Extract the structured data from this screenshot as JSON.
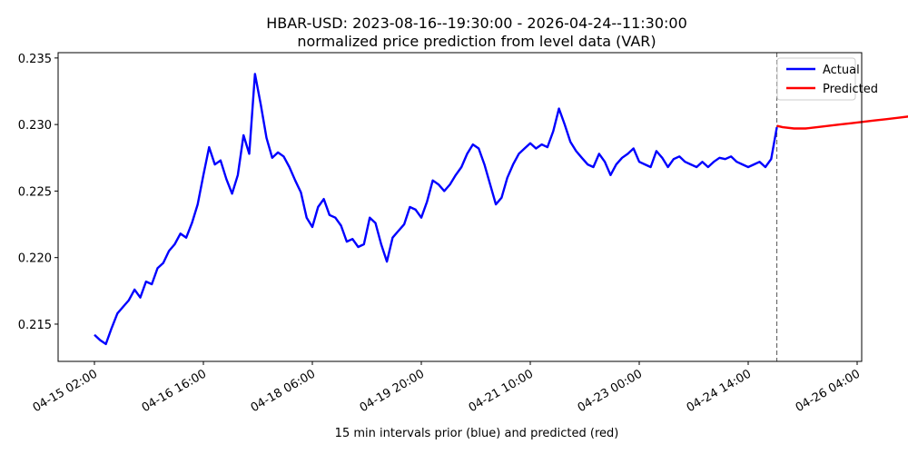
{
  "chart_data": {
    "type": "line",
    "title": "HBAR-USD: 2023-08-16--19:30:00 - 2026-04-24--11:30:00",
    "subtitle": "normalized price prediction from level data (VAR)",
    "xlabel": "15 min intervals prior (blue) and predicted (red)",
    "ylabel": "",
    "x_ticks": [
      "04-15 02:00",
      "04-16 16:00",
      "04-18 06:00",
      "04-19 20:00",
      "04-21 10:00",
      "04-23 00:00",
      "04-24 14:00",
      "04-26 04:00"
    ],
    "y_ticks": [
      "0.215",
      "0.220",
      "0.225",
      "0.230",
      "0.235"
    ],
    "ylim": [
      0.2122,
      0.2354
    ],
    "forecast_start_label": "04-24 13:15",
    "legend": {
      "position": "top-right"
    },
    "series": [
      {
        "name": "Actual",
        "color": "#0000ff",
        "x_hours": [
          0,
          2,
          4,
          6,
          8,
          10,
          12,
          14,
          16,
          18,
          20,
          22,
          24,
          26,
          28,
          30,
          32,
          34,
          36,
          38,
          40,
          42,
          44,
          46,
          48,
          50,
          52,
          54,
          56,
          58,
          60,
          62,
          64,
          66,
          68,
          70,
          72,
          74,
          76,
          78,
          80,
          82,
          84,
          86,
          88,
          90,
          92,
          94,
          96,
          98,
          100,
          102,
          104,
          106,
          108,
          110,
          112,
          114,
          116,
          118,
          120,
          122,
          124,
          126,
          128,
          130,
          132,
          134,
          136,
          138,
          140,
          142,
          144,
          146,
          148,
          150,
          152,
          154,
          156,
          158,
          160,
          162,
          164,
          166,
          168,
          170,
          172,
          174,
          176,
          178,
          180,
          182,
          184,
          186,
          188,
          190,
          192,
          194,
          196,
          198,
          200,
          202,
          204,
          206,
          208,
          210,
          212,
          214,
          216,
          218,
          220,
          222,
          224,
          226,
          228,
          230,
          232,
          234,
          236,
          238
        ],
        "values": [
          0.2142,
          0.2138,
          0.2135,
          0.2147,
          0.2158,
          0.2163,
          0.2168,
          0.2176,
          0.217,
          0.2182,
          0.218,
          0.2192,
          0.2196,
          0.2205,
          0.221,
          0.2218,
          0.2215,
          0.2226,
          0.224,
          0.2262,
          0.2283,
          0.227,
          0.2273,
          0.2259,
          0.2248,
          0.2262,
          0.2292,
          0.2278,
          0.2338,
          0.2315,
          0.229,
          0.2275,
          0.2279,
          0.2276,
          0.2268,
          0.2258,
          0.2249,
          0.223,
          0.2223,
          0.2238,
          0.2244,
          0.2232,
          0.223,
          0.2224,
          0.2212,
          0.2214,
          0.2208,
          0.221,
          0.223,
          0.2226,
          0.221,
          0.2197,
          0.2215,
          0.222,
          0.2225,
          0.2238,
          0.2236,
          0.223,
          0.2242,
          0.2258,
          0.2255,
          0.225,
          0.2255,
          0.2262,
          0.2268,
          0.2278,
          0.2285,
          0.2282,
          0.227,
          0.2255,
          0.224,
          0.2245,
          0.226,
          0.227,
          0.2278,
          0.2282,
          0.2286,
          0.2282,
          0.2285,
          0.2283,
          0.2295,
          0.2312,
          0.23,
          0.2287,
          0.228,
          0.2275,
          0.227,
          0.2268,
          0.2278,
          0.2272,
          0.2262,
          0.227,
          0.2275,
          0.2278,
          0.2282,
          0.2272,
          0.227,
          0.2268,
          0.228,
          0.2275,
          0.2268,
          0.2274,
          0.2276,
          0.2272,
          0.227,
          0.2268,
          0.2272,
          0.2268,
          0.2272,
          0.2275,
          0.2274,
          0.2276,
          0.2272,
          0.227,
          0.2268,
          0.227,
          0.2272,
          0.2268,
          0.2274,
          0.2298
        ]
      },
      {
        "name": "Predicted",
        "color": "#ff0000",
        "x_hours": [
          238,
          240,
          244,
          248,
          252,
          256,
          260,
          264,
          268,
          272,
          276,
          280,
          284,
          290
        ],
        "values": [
          0.2299,
          0.2298,
          0.2297,
          0.2297,
          0.2298,
          0.2299,
          0.23,
          0.2301,
          0.2302,
          0.2303,
          0.2304,
          0.2305,
          0.2306,
          0.2307
        ]
      }
    ]
  }
}
